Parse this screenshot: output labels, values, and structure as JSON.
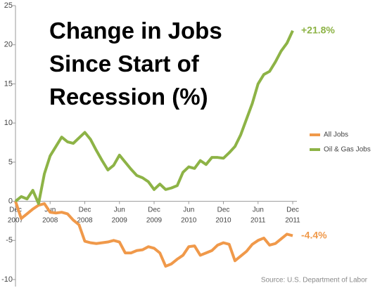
{
  "chart_data": {
    "type": "line",
    "title": "Change in Jobs Since Start of Recession (%)",
    "source": "Source: U.S. Department of Labor",
    "categories": [
      "Dec 2007",
      null,
      null,
      null,
      null,
      null,
      "Jun 2008",
      null,
      null,
      null,
      null,
      null,
      "Dec 2008",
      null,
      null,
      null,
      null,
      null,
      "Jun 2009",
      null,
      null,
      null,
      null,
      null,
      "Dec 2009",
      null,
      null,
      null,
      null,
      null,
      "Jun 2010",
      null,
      null,
      null,
      null,
      null,
      "Dec 2010",
      null,
      null,
      null,
      null,
      null,
      "Jun 2011",
      null,
      null,
      null,
      null,
      null,
      "Dec 2011"
    ],
    "ylim": [
      -10,
      25
    ],
    "yticks": [
      -10,
      -5,
      0,
      5,
      10,
      15,
      20,
      25
    ],
    "legend": "right",
    "series": [
      {
        "name": "All Jobs",
        "color": "#f0994a",
        "end_label": "-4.4%",
        "values": [
          0,
          -2.2,
          -1.6,
          -1,
          -0.5,
          -0.3,
          -1.4,
          -1.5,
          -1.4,
          -1.6,
          -2.4,
          -3,
          -5.1,
          -5.3,
          -5.4,
          -5.3,
          -5.2,
          -5,
          -5.2,
          -6.6,
          -6.6,
          -6.3,
          -6.2,
          -5.8,
          -6,
          -6.6,
          -8.3,
          -8,
          -7.4,
          -6.9,
          -5.8,
          -5.7,
          -6.9,
          -6.6,
          -6.3,
          -5.6,
          -5.3,
          -5.5,
          -7.6,
          -7,
          -6.4,
          -5.5,
          -5,
          -4.7,
          -5.6,
          -5.4,
          -4.8,
          -4.2,
          -4.4
        ]
      },
      {
        "name": "Oil & Gas Jobs",
        "color": "#8db346",
        "end_label": "+21.8%",
        "values": [
          0,
          0.6,
          0.3,
          1.4,
          -0.3,
          3.5,
          5.8,
          7,
          8.2,
          7.6,
          7.4,
          8.1,
          8.8,
          7.9,
          6.5,
          5.2,
          4,
          4.6,
          5.9,
          5,
          4.1,
          3.3,
          3,
          2.5,
          1.5,
          2.2,
          1.5,
          1.7,
          2,
          3.7,
          4.4,
          4.2,
          5.2,
          4.7,
          5.6,
          5.6,
          5.5,
          6.2,
          7,
          8.5,
          10.5,
          12.5,
          15,
          16.2,
          16.6,
          17.8,
          19.2,
          20.2,
          21.8
        ]
      }
    ]
  }
}
